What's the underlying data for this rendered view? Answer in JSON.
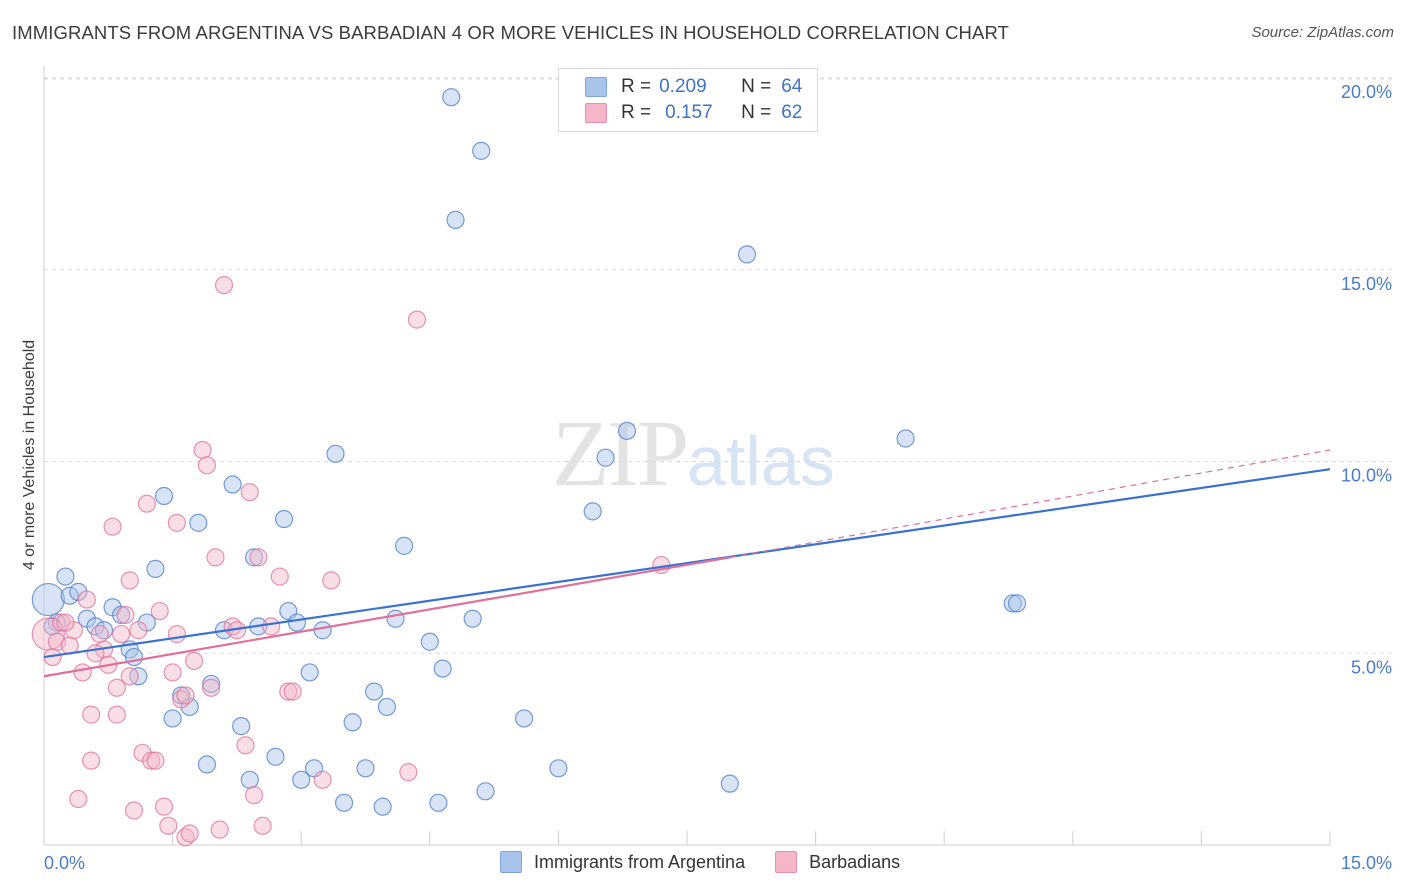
{
  "header": {
    "title": "IMMIGRANTS FROM ARGENTINA VS BARBADIAN 4 OR MORE VEHICLES IN HOUSEHOLD CORRELATION CHART",
    "source": "Source: ZipAtlas.com"
  },
  "watermark": {
    "zip": "ZIP",
    "atlas": "atlas"
  },
  "legend": {
    "rows": [
      {
        "r_label": "R =",
        "r_value": "0.209",
        "n_label": "N =",
        "n_value": "64",
        "color": "#a9c4ea"
      },
      {
        "r_label": "R =",
        "r_value": "0.157",
        "n_label": "N =",
        "n_value": "62",
        "color": "#f5b6c8"
      }
    ]
  },
  "bottom_legend": {
    "items": [
      {
        "label": "Immigrants from Argentina",
        "color": "#a9c4ea"
      },
      {
        "label": "Barbadians",
        "color": "#f5b6c8"
      }
    ]
  },
  "chart_data": {
    "type": "scatter",
    "title": "IMMIGRANTS FROM ARGENTINA VS BARBADIAN 4 OR MORE VEHICLES IN HOUSEHOLD CORRELATION CHART",
    "xlabel": "",
    "ylabel": "4 or more Vehicles in Household",
    "xlim": [
      0,
      15
    ],
    "ylim": [
      0,
      20
    ],
    "x_tick_labels": [
      "0.0%",
      "15.0%"
    ],
    "y_ticks": [
      5,
      10,
      15,
      20
    ],
    "y_tick_labels": [
      "5.0%",
      "10.0%",
      "15.0%",
      "20.0%"
    ],
    "grid": true,
    "legend_position": "top-center",
    "series": [
      {
        "name": "Immigrants from Argentina",
        "color": "#4a7cc9",
        "fill": "#a9c4ea",
        "r": 0.209,
        "n": 64,
        "trend": {
          "x0": 0,
          "y0": 4.9,
          "x1": 15,
          "y1": 9.8
        },
        "points": [
          [
            0.05,
            6.4
          ],
          [
            0.15,
            5.8
          ],
          [
            0.25,
            7.0
          ],
          [
            0.3,
            6.5
          ],
          [
            0.4,
            6.6
          ],
          [
            0.5,
            5.9
          ],
          [
            0.6,
            5.7
          ],
          [
            0.7,
            5.6
          ],
          [
            0.8,
            6.2
          ],
          [
            0.9,
            6.0
          ],
          [
            1.0,
            5.1
          ],
          [
            1.05,
            4.9
          ],
          [
            1.1,
            4.4
          ],
          [
            1.2,
            5.8
          ],
          [
            1.3,
            7.2
          ],
          [
            1.4,
            9.1
          ],
          [
            1.5,
            3.3
          ],
          [
            1.6,
            3.9
          ],
          [
            1.7,
            3.6
          ],
          [
            1.8,
            8.4
          ],
          [
            1.9,
            2.1
          ],
          [
            1.95,
            4.2
          ],
          [
            2.1,
            5.6
          ],
          [
            2.2,
            9.4
          ],
          [
            2.3,
            3.1
          ],
          [
            2.4,
            1.7
          ],
          [
            2.45,
            7.5
          ],
          [
            2.5,
            5.7
          ],
          [
            2.7,
            2.3
          ],
          [
            2.8,
            8.5
          ],
          [
            2.85,
            6.1
          ],
          [
            2.95,
            5.8
          ],
          [
            3.0,
            1.7
          ],
          [
            3.15,
            2.0
          ],
          [
            3.1,
            4.5
          ],
          [
            3.25,
            5.6
          ],
          [
            3.4,
            10.2
          ],
          [
            3.5,
            1.1
          ],
          [
            3.6,
            3.2
          ],
          [
            3.75,
            2.0
          ],
          [
            3.85,
            4.0
          ],
          [
            3.95,
            1.0
          ],
          [
            4.0,
            3.6
          ],
          [
            4.1,
            5.9
          ],
          [
            4.2,
            7.8
          ],
          [
            4.5,
            5.3
          ],
          [
            4.6,
            1.1
          ],
          [
            4.65,
            4.6
          ],
          [
            4.75,
            19.5
          ],
          [
            4.8,
            16.3
          ],
          [
            5.0,
            5.9
          ],
          [
            5.1,
            18.1
          ],
          [
            5.15,
            1.4
          ],
          [
            5.6,
            3.3
          ],
          [
            6.0,
            2.0
          ],
          [
            6.4,
            8.7
          ],
          [
            6.55,
            10.1
          ],
          [
            6.8,
            10.8
          ],
          [
            8.0,
            1.6
          ],
          [
            8.2,
            15.4
          ],
          [
            10.05,
            10.6
          ],
          [
            11.3,
            6.3
          ],
          [
            11.35,
            6.3
          ],
          [
            0.1,
            5.7
          ]
        ]
      },
      {
        "name": "Barbadians",
        "color": "#e0709a",
        "fill": "#f5b6c8",
        "r": 0.157,
        "n": 62,
        "trend": {
          "x0": 0,
          "y0": 4.4,
          "x1": 8.0,
          "y1": 7.5
        },
        "trend_ext": {
          "x0": 8.0,
          "y0": 7.5,
          "x1": 15,
          "y1": 10.3
        },
        "points": [
          [
            0.05,
            5.5
          ],
          [
            0.1,
            4.9
          ],
          [
            0.15,
            5.3
          ],
          [
            0.2,
            5.8
          ],
          [
            0.3,
            5.2
          ],
          [
            0.35,
            5.6
          ],
          [
            0.4,
            1.2
          ],
          [
            0.45,
            4.5
          ],
          [
            0.5,
            6.4
          ],
          [
            0.55,
            3.4
          ],
          [
            0.55,
            2.2
          ],
          [
            0.65,
            5.5
          ],
          [
            0.7,
            5.1
          ],
          [
            0.75,
            4.7
          ],
          [
            0.8,
            8.3
          ],
          [
            0.85,
            4.1
          ],
          [
            0.85,
            3.4
          ],
          [
            0.9,
            5.5
          ],
          [
            0.95,
            6.0
          ],
          [
            1.0,
            6.9
          ],
          [
            1.05,
            0.9
          ],
          [
            1.1,
            5.6
          ],
          [
            1.15,
            2.4
          ],
          [
            1.2,
            8.9
          ],
          [
            1.25,
            2.2
          ],
          [
            1.3,
            2.2
          ],
          [
            1.35,
            6.1
          ],
          [
            1.4,
            1.0
          ],
          [
            1.45,
            0.5
          ],
          [
            1.5,
            4.5
          ],
          [
            1.55,
            8.4
          ],
          [
            1.6,
            3.8
          ],
          [
            1.65,
            0.2
          ],
          [
            1.7,
            0.3
          ],
          [
            1.75,
            4.8
          ],
          [
            1.85,
            10.3
          ],
          [
            1.9,
            9.9
          ],
          [
            1.95,
            4.1
          ],
          [
            2.0,
            7.5
          ],
          [
            2.05,
            0.4
          ],
          [
            2.1,
            14.6
          ],
          [
            2.2,
            5.7
          ],
          [
            2.25,
            5.6
          ],
          [
            2.35,
            2.6
          ],
          [
            2.4,
            9.2
          ],
          [
            2.45,
            1.3
          ],
          [
            2.5,
            7.5
          ],
          [
            2.55,
            0.5
          ],
          [
            2.65,
            5.7
          ],
          [
            2.75,
            7.0
          ],
          [
            2.85,
            4.0
          ],
          [
            2.9,
            4.0
          ],
          [
            3.25,
            1.7
          ],
          [
            3.35,
            6.9
          ],
          [
            4.25,
            1.9
          ],
          [
            4.35,
            13.7
          ],
          [
            7.2,
            7.3
          ],
          [
            1.65,
            3.9
          ],
          [
            1.55,
            5.5
          ],
          [
            0.25,
            5.8
          ],
          [
            0.6,
            5.0
          ],
          [
            1.0,
            4.4
          ]
        ]
      }
    ]
  }
}
